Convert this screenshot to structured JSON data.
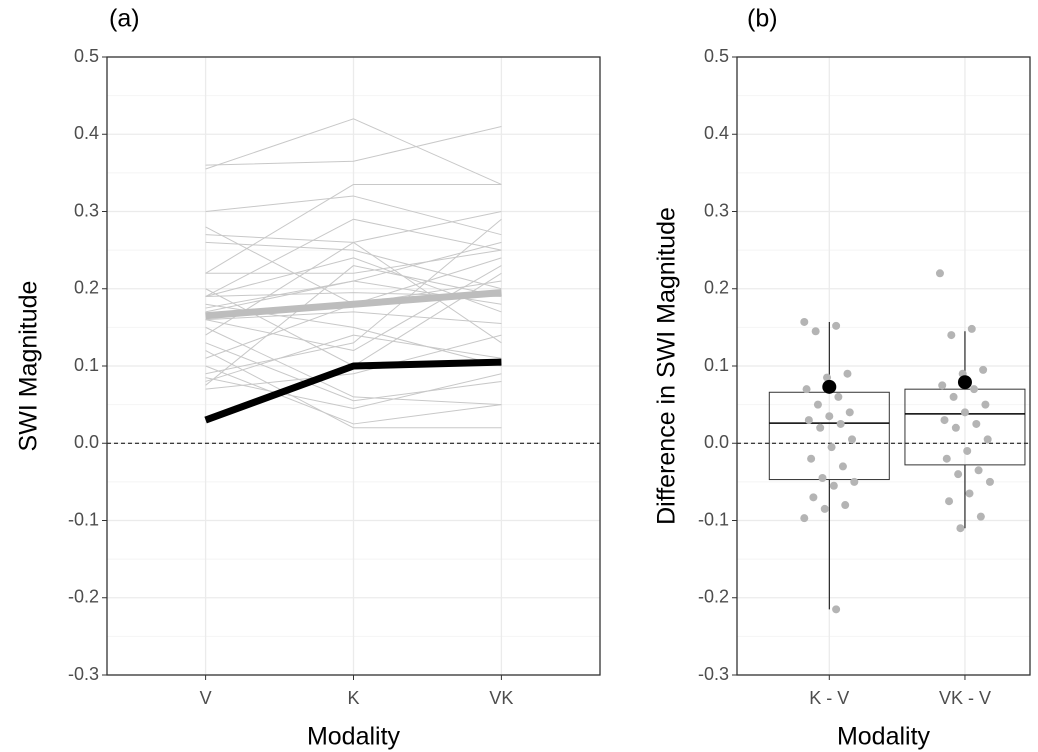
{
  "chart_data": [
    {
      "type": "line",
      "title": "(a)",
      "xlabel": "Modality",
      "ylabel": "SWI Magnitude",
      "categories": [
        "V",
        "K",
        "VK"
      ],
      "ylim": [
        -0.3,
        0.5
      ],
      "yticks": [
        {
          "value": -0.3,
          "label": "-0.3"
        },
        {
          "value": -0.2,
          "label": "-0.2"
        },
        {
          "value": -0.1,
          "label": "-0.1"
        },
        {
          "value": 0,
          "label": "0.0"
        },
        0.1,
        0.2,
        0.3,
        0.4,
        0.5
      ],
      "grid": true,
      "hline": 0,
      "series": [
        {
          "color": "#c8c8c8",
          "linewidth": 1,
          "values": [
            0.36,
            0.365,
            0.41
          ]
        },
        {
          "color": "#c8c8c8",
          "linewidth": 1,
          "values": [
            0.355,
            0.42,
            0.335
          ]
        },
        {
          "color": "#c8c8c8",
          "linewidth": 1,
          "values": [
            0.3,
            0.32,
            0.27
          ]
        },
        {
          "color": "#c8c8c8",
          "linewidth": 1,
          "values": [
            0.27,
            0.26,
            0.3
          ]
        },
        {
          "color": "#c8c8c8",
          "linewidth": 1,
          "values": [
            0.28,
            0.18,
            0.24
          ]
        },
        {
          "color": "#c8c8c8",
          "linewidth": 1,
          "values": [
            0.26,
            0.25,
            0.2
          ]
        },
        {
          "color": "#c8c8c8",
          "linewidth": 1,
          "values": [
            0.22,
            0.335,
            0.335
          ]
        },
        {
          "color": "#c8c8c8",
          "linewidth": 1,
          "values": [
            0.22,
            0.22,
            0.25
          ]
        },
        {
          "color": "#c8c8c8",
          "linewidth": 1,
          "values": [
            0.2,
            0.1,
            0.22
          ]
        },
        {
          "color": "#c8c8c8",
          "linewidth": 1,
          "values": [
            0.19,
            0.24,
            0.17
          ]
        },
        {
          "color": "#c8c8c8",
          "linewidth": 1,
          "values": [
            0.19,
            0.29,
            0.25
          ]
        },
        {
          "color": "#c8c8c8",
          "linewidth": 1,
          "values": [
            0.18,
            0.15,
            0.1
          ]
        },
        {
          "color": "#c8c8c8",
          "linewidth": 1,
          "values": [
            0.175,
            0.21,
            0.26
          ]
        },
        {
          "color": "#c8c8c8",
          "linewidth": 1,
          "values": [
            0.17,
            0.21,
            0.18
          ]
        },
        {
          "color": "#c8c8c8",
          "linewidth": 1,
          "values": [
            0.16,
            0.12,
            0.23
          ]
        },
        {
          "color": "#c8c8c8",
          "linewidth": 1,
          "values": [
            0.15,
            0.06,
            0.05
          ]
        },
        {
          "color": "#c8c8c8",
          "linewidth": 1,
          "values": [
            0.14,
            0.26,
            0.13
          ]
        },
        {
          "color": "#c8c8c8",
          "linewidth": 1,
          "values": [
            0.13,
            0.055,
            0.08
          ]
        },
        {
          "color": "#c8c8c8",
          "linewidth": 1,
          "values": [
            0.12,
            0.02,
            0.02
          ]
        },
        {
          "color": "#c8c8c8",
          "linewidth": 1,
          "values": [
            0.11,
            0.18,
            0.21
          ]
        },
        {
          "color": "#c8c8c8",
          "linewidth": 1,
          "values": [
            0.1,
            0.025,
            0.05
          ]
        },
        {
          "color": "#c8c8c8",
          "linewidth": 1,
          "values": [
            0.09,
            0.13,
            0.29
          ]
        },
        {
          "color": "#c8c8c8",
          "linewidth": 1,
          "values": [
            0.08,
            0.14,
            0.11
          ]
        },
        {
          "color": "#c8c8c8",
          "linewidth": 1,
          "values": [
            0.075,
            0.23,
            0.19
          ]
        },
        {
          "color": "#c8c8c8",
          "linewidth": 1,
          "values": [
            0.07,
            0.09,
            0.14
          ]
        },
        {
          "color": "#c8c8c8",
          "linewidth": 1,
          "values": [
            0.16,
            0.17,
            0.155
          ]
        },
        {
          "color": "#c8c8c8",
          "linewidth": 1,
          "values": [
            0.19,
            0.195,
            0.19
          ]
        },
        {
          "color": "#c8c8c8",
          "linewidth": 1,
          "values": [
            0.085,
            0.045,
            0.09
          ]
        },
        {
          "color": "#bdbdbd",
          "linewidth": 7,
          "values": [
            0.165,
            0.18,
            0.195
          ]
        },
        {
          "color": "#000000",
          "linewidth": 7,
          "values": [
            0.03,
            0.1,
            0.105
          ]
        }
      ]
    },
    {
      "type": "box",
      "title": "(b)",
      "xlabel": "Modality",
      "ylabel": "Difference in SWI Magnitude",
      "categories": [
        "K - V",
        "VK - V"
      ],
      "ylim": [
        -0.3,
        0.5
      ],
      "yticks": [
        {
          "value": -0.3,
          "label": "-0.3"
        },
        {
          "value": -0.2,
          "label": "-0.2"
        },
        {
          "value": -0.1,
          "label": "-0.1"
        },
        {
          "value": 0,
          "label": "0.0"
        },
        0.1,
        0.2,
        0.3,
        0.4,
        0.5
      ],
      "grid": true,
      "hline": 0,
      "boxes": [
        {
          "whislo": -0.215,
          "q1": -0.047,
          "median": 0.026,
          "q3": 0.066,
          "whishi": 0.157
        },
        {
          "whislo": -0.11,
          "q1": -0.028,
          "median": 0.038,
          "q3": 0.07,
          "whishi": 0.145
        }
      ],
      "points": [
        [
          0.157,
          0.152,
          0.145,
          0.09,
          0.085,
          0.07,
          0.06,
          0.05,
          0.04,
          0.035,
          0.03,
          0.025,
          0.02,
          0.005,
          -0.005,
          -0.02,
          -0.03,
          -0.045,
          -0.05,
          -0.055,
          -0.07,
          -0.08,
          -0.085,
          -0.097,
          -0.215
        ],
        [
          0.22,
          0.148,
          0.14,
          0.095,
          0.09,
          0.075,
          0.07,
          0.06,
          0.05,
          0.04,
          0.03,
          0.025,
          0.02,
          0.005,
          -0.01,
          -0.02,
          -0.035,
          -0.04,
          -0.05,
          -0.065,
          -0.075,
          -0.095,
          -0.11
        ]
      ],
      "point_color": "#b4b4b4",
      "means": [
        0.073,
        0.079
      ],
      "mean_color": "#000000"
    }
  ]
}
